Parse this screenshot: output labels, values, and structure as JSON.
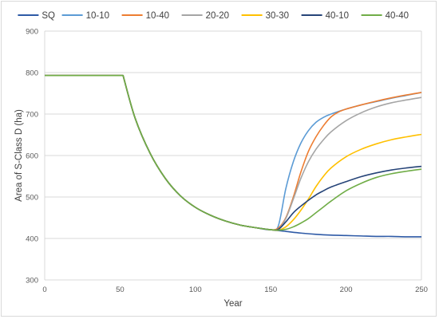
{
  "chart_data": {
    "type": "line",
    "title": "",
    "xlabel": "Year",
    "ylabel": "Area of S-Class D (ha)",
    "xlim": [
      0,
      250
    ],
    "ylim": [
      300,
      900
    ],
    "xticks": [
      0,
      50,
      100,
      150,
      200,
      250
    ],
    "yticks": [
      300,
      400,
      500,
      600,
      700,
      800,
      900
    ],
    "grid": "horizontal",
    "legend_position": "top",
    "series": [
      {
        "name": "SQ",
        "color": "#2e5aa6",
        "x": [
          0,
          50,
          52,
          60,
          70,
          80,
          90,
          100,
          110,
          120,
          130,
          140,
          150,
          160,
          170,
          180,
          190,
          200,
          210,
          220,
          230,
          240,
          250
        ],
        "y": [
          793,
          793,
          793,
          690,
          605,
          545,
          503,
          475,
          456,
          442,
          432,
          426,
          421,
          417,
          413,
          410,
          408,
          407,
          406,
          405,
          405,
          404,
          404
        ]
      },
      {
        "name": "10-10",
        "color": "#5b9bd5",
        "x": [
          0,
          50,
          52,
          60,
          70,
          80,
          90,
          100,
          110,
          120,
          130,
          140,
          150,
          155,
          160,
          165,
          170,
          175,
          180,
          185,
          190,
          200,
          210,
          220,
          230,
          240,
          250
        ],
        "y": [
          793,
          793,
          793,
          690,
          605,
          545,
          503,
          475,
          456,
          442,
          432,
          426,
          421,
          430,
          520,
          585,
          630,
          660,
          680,
          692,
          700,
          712,
          722,
          730,
          738,
          745,
          752
        ]
      },
      {
        "name": "10-40",
        "color": "#ed7d31",
        "x": [
          0,
          50,
          52,
          60,
          70,
          80,
          90,
          100,
          110,
          120,
          130,
          140,
          150,
          155,
          160,
          165,
          170,
          175,
          180,
          185,
          190,
          195,
          200,
          210,
          220,
          230,
          240,
          250
        ],
        "y": [
          793,
          793,
          793,
          690,
          605,
          545,
          503,
          475,
          456,
          442,
          432,
          426,
          421,
          425,
          450,
          500,
          560,
          610,
          645,
          672,
          693,
          705,
          712,
          722,
          731,
          739,
          746,
          752
        ]
      },
      {
        "name": "20-20",
        "color": "#a5a5a5",
        "x": [
          0,
          50,
          52,
          60,
          70,
          80,
          90,
          100,
          110,
          120,
          130,
          140,
          150,
          155,
          160,
          165,
          170,
          175,
          180,
          185,
          190,
          200,
          210,
          220,
          230,
          240,
          250
        ],
        "y": [
          793,
          793,
          793,
          690,
          605,
          545,
          503,
          475,
          456,
          442,
          432,
          426,
          421,
          422,
          448,
          495,
          545,
          585,
          615,
          638,
          657,
          684,
          703,
          717,
          727,
          734,
          740
        ]
      },
      {
        "name": "30-30",
        "color": "#ffc000",
        "x": [
          0,
          50,
          52,
          60,
          70,
          80,
          90,
          100,
          110,
          120,
          130,
          140,
          150,
          155,
          160,
          165,
          170,
          175,
          180,
          185,
          190,
          200,
          210,
          220,
          230,
          240,
          250
        ],
        "y": [
          793,
          793,
          793,
          690,
          605,
          545,
          503,
          475,
          456,
          442,
          432,
          426,
          421,
          420,
          428,
          445,
          468,
          495,
          525,
          550,
          570,
          597,
          615,
          628,
          638,
          645,
          651
        ]
      },
      {
        "name": "40-10",
        "color": "#264478",
        "x": [
          0,
          50,
          52,
          60,
          70,
          80,
          90,
          100,
          110,
          120,
          130,
          140,
          150,
          155,
          160,
          165,
          170,
          175,
          180,
          185,
          190,
          200,
          210,
          220,
          230,
          240,
          250
        ],
        "y": [
          793,
          793,
          793,
          690,
          605,
          545,
          503,
          475,
          456,
          442,
          432,
          426,
          421,
          422,
          440,
          462,
          478,
          492,
          505,
          515,
          524,
          537,
          549,
          558,
          565,
          570,
          574
        ]
      },
      {
        "name": "40-40",
        "color": "#70ad47",
        "x": [
          0,
          50,
          52,
          60,
          70,
          80,
          90,
          100,
          110,
          120,
          130,
          140,
          150,
          155,
          160,
          165,
          170,
          175,
          180,
          185,
          190,
          200,
          210,
          220,
          230,
          240,
          250
        ],
        "y": [
          793,
          793,
          793,
          690,
          605,
          545,
          503,
          475,
          456,
          442,
          432,
          426,
          421,
          420,
          422,
          428,
          437,
          448,
          462,
          476,
          490,
          515,
          533,
          547,
          556,
          562,
          567
        ]
      }
    ]
  }
}
